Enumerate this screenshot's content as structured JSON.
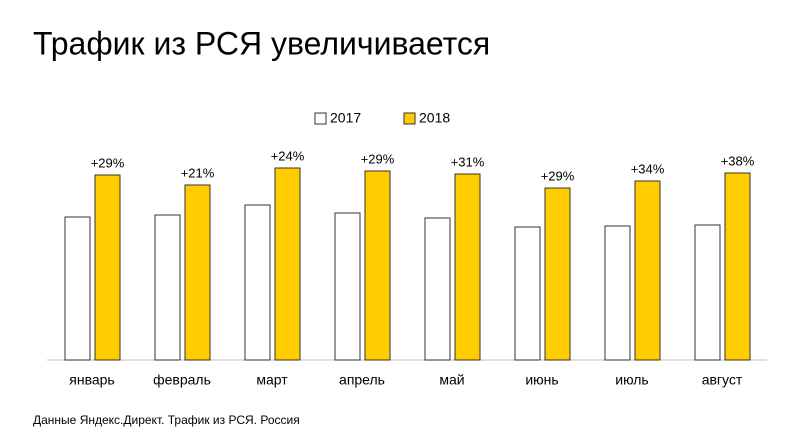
{
  "chart_data": {
    "type": "bar",
    "title": "Трафик из РСЯ увеличивается",
    "categories": [
      "январь",
      "февраль",
      "март",
      "апрель",
      "май",
      "июнь",
      "июль",
      "август"
    ],
    "series": [
      {
        "name": "2017",
        "color": "#ffffff",
        "values": [
          143,
          145,
          155,
          147,
          142,
          133,
          134,
          135
        ]
      },
      {
        "name": "2018",
        "color": "#ffcc00",
        "values": [
          185,
          175,
          192,
          189,
          186,
          172,
          179,
          187
        ]
      }
    ],
    "annotations": [
      "+29%",
      "+21%",
      "+24%",
      "+29%",
      "+31%",
      "+29%",
      "+34%",
      "+38%"
    ],
    "note": "Данные Яндекс.Директ. Трафик из РСЯ. Россия"
  }
}
